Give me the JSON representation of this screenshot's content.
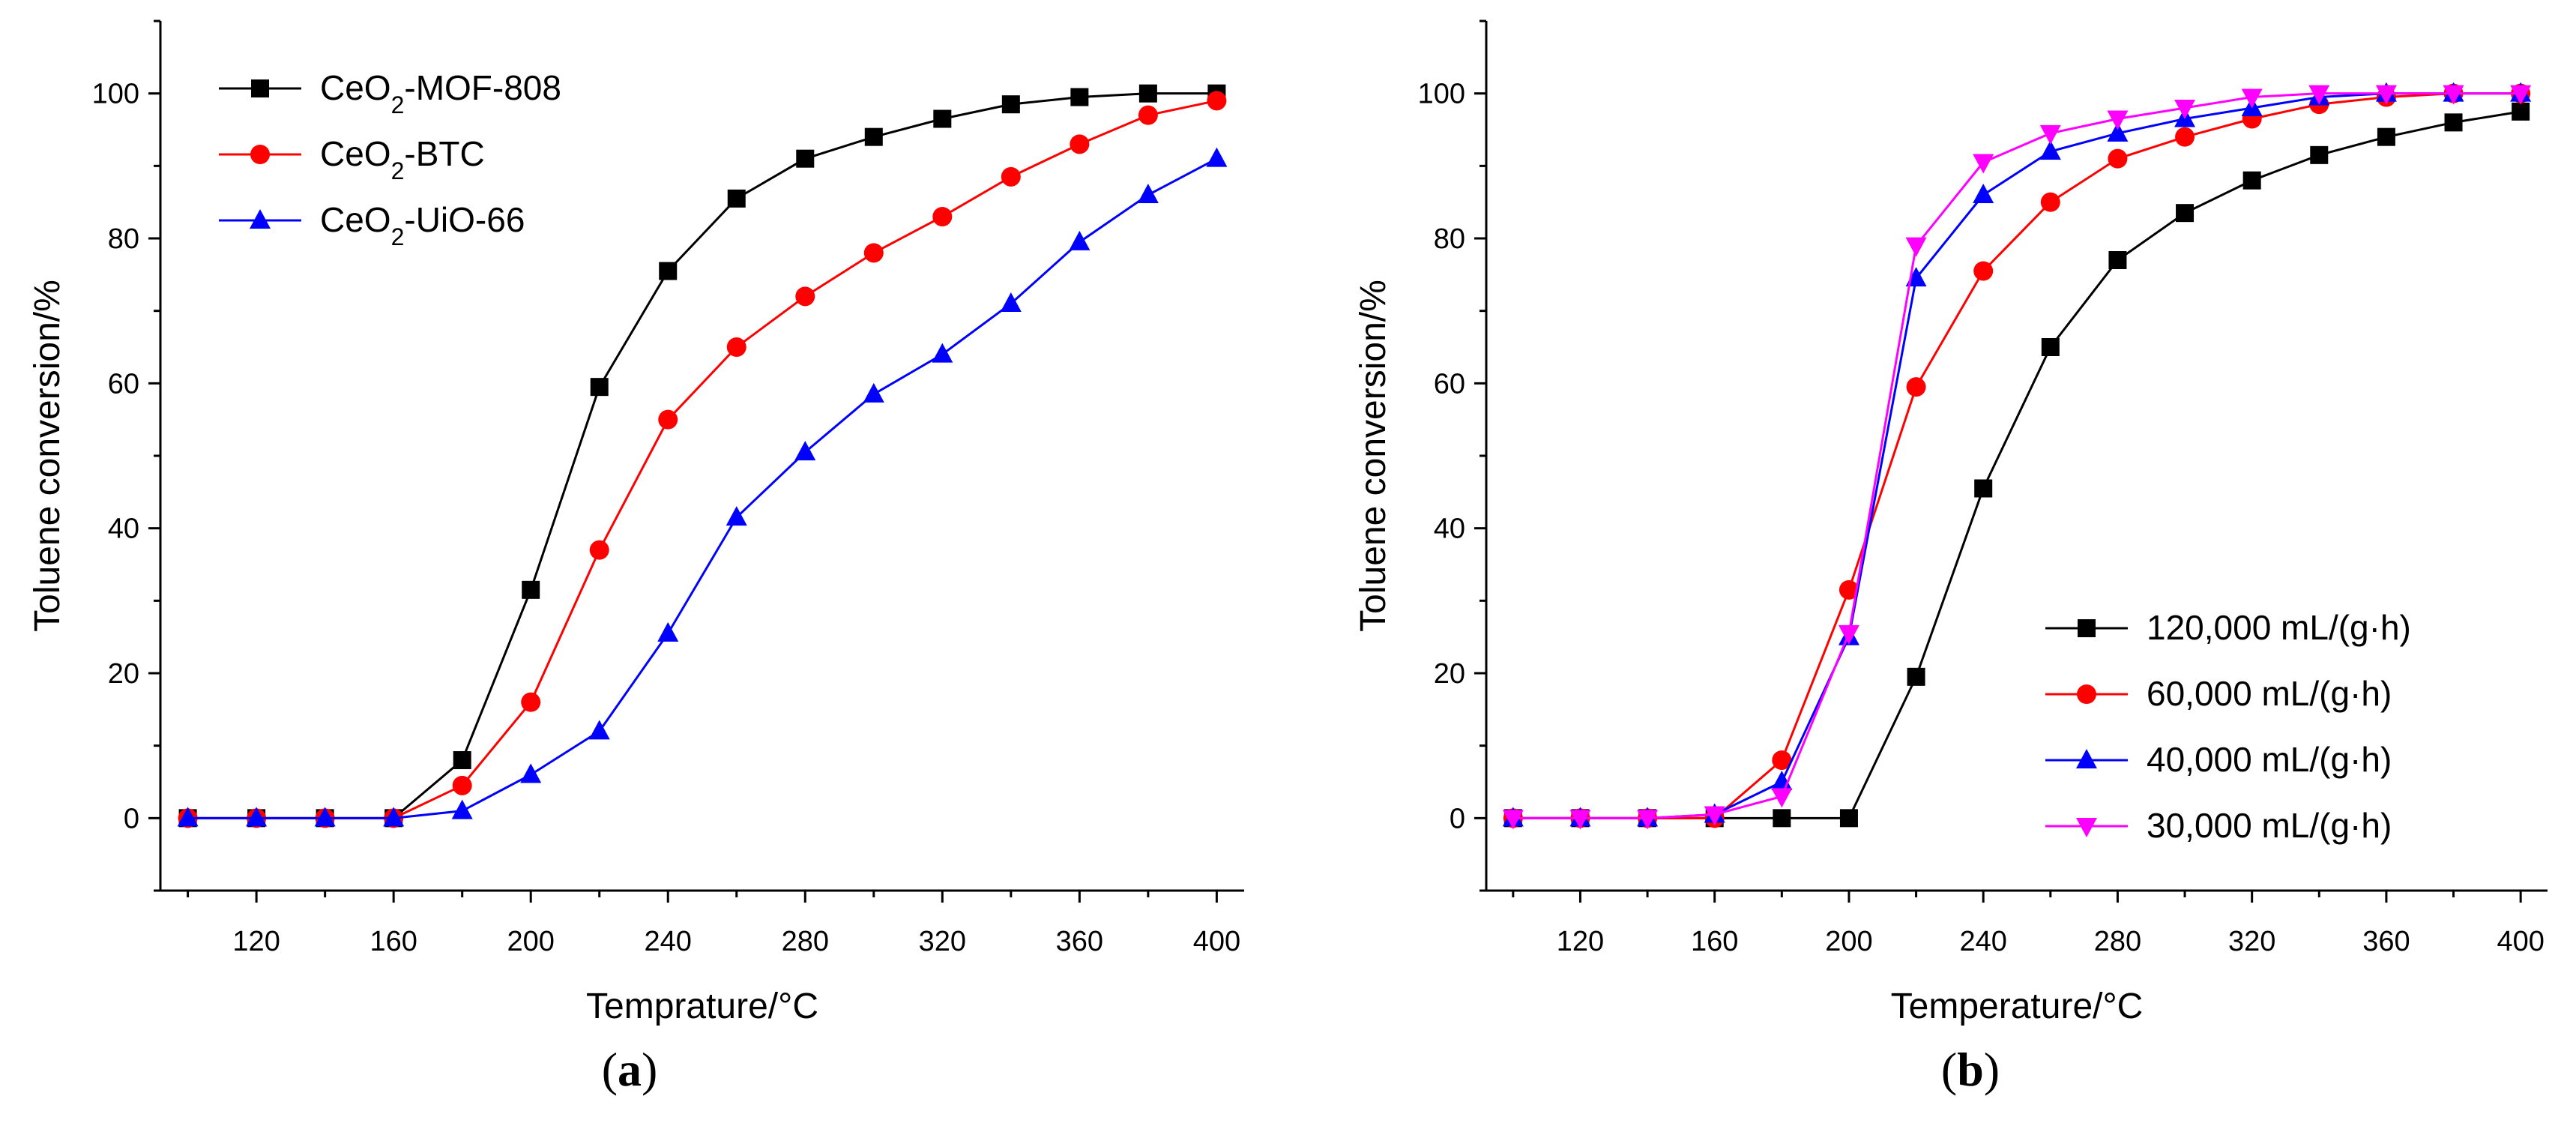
{
  "figure": {
    "labels": [
      "a",
      "b"
    ]
  },
  "chart_data": [
    {
      "type": "line",
      "title": "",
      "xlabel": "Temprature/°C",
      "ylabel": "Toluene conversion/%",
      "xlim": [
        92,
        408
      ],
      "ylim": [
        -10,
        110
      ],
      "xticks": [
        120,
        160,
        200,
        240,
        280,
        320,
        360,
        400
      ],
      "yticks": [
        0,
        20,
        40,
        60,
        80,
        100
      ],
      "legend_position": "top-left",
      "x": [
        100,
        120,
        140,
        160,
        180,
        200,
        220,
        240,
        260,
        280,
        300,
        320,
        340,
        360,
        380,
        400
      ],
      "series": [
        {
          "name": "CeO₂-MOF-808",
          "name_parts": [
            "CeO",
            "2",
            "-MOF-808"
          ],
          "color": "#000000",
          "marker": "square",
          "values": [
            0,
            0,
            0,
            0,
            8,
            31.5,
            59.5,
            75.5,
            85.5,
            91,
            94,
            96.5,
            98.5,
            99.5,
            100,
            100
          ]
        },
        {
          "name": "CeO₂-BTC",
          "name_parts": [
            "CeO",
            "2",
            "-BTC"
          ],
          "color": "#ff0000",
          "marker": "circle",
          "values": [
            0,
            0,
            0,
            0,
            4.5,
            16,
            37,
            55,
            65,
            72,
            78,
            83,
            88.5,
            93,
            97,
            99
          ]
        },
        {
          "name": "CeO₂-UiO-66",
          "name_parts": [
            "CeO",
            "2",
            "-UiO-66"
          ],
          "color": "#0000ff",
          "marker": "triangle-up",
          "values": [
            0,
            0,
            0,
            0,
            1,
            6,
            12,
            25.5,
            41.5,
            50.5,
            58.5,
            64,
            71,
            79.5,
            86,
            91
          ]
        }
      ]
    },
    {
      "type": "line",
      "title": "",
      "xlabel": "Temperature/°C",
      "ylabel": "Toluene conversion/%",
      "xlim": [
        92,
        408
      ],
      "ylim": [
        -10,
        110
      ],
      "xticks": [
        120,
        160,
        200,
        240,
        280,
        320,
        360,
        400
      ],
      "yticks": [
        0,
        20,
        40,
        60,
        80,
        100
      ],
      "legend_position": "bottom-right",
      "x": [
        100,
        120,
        140,
        160,
        180,
        200,
        220,
        240,
        260,
        280,
        300,
        320,
        340,
        360,
        380,
        400
      ],
      "series": [
        {
          "name": "120,000 mL/(g·h)",
          "name_parts": [
            "120,000 mL/(g·h)"
          ],
          "color": "#000000",
          "marker": "square",
          "values": [
            0,
            0,
            0,
            0,
            0,
            0,
            19.5,
            45.5,
            65,
            77,
            83.5,
            88,
            91.5,
            94,
            96,
            97.5
          ]
        },
        {
          "name": "60,000 mL/(g·h)",
          "name_parts": [
            "60,000 mL/(g·h)"
          ],
          "color": "#ff0000",
          "marker": "circle",
          "values": [
            0,
            0,
            0,
            0,
            8,
            31.5,
            59.5,
            75.5,
            85,
            91,
            94,
            96.5,
            98.5,
            99.5,
            100,
            100
          ]
        },
        {
          "name": "40,000 mL/(g·h)",
          "name_parts": [
            "40,000 mL/(g·h)"
          ],
          "color": "#0000ff",
          "marker": "triangle-up",
          "values": [
            0,
            0,
            0,
            0.5,
            5,
            25,
            74.5,
            86,
            92,
            94.5,
            96.5,
            98,
            99.5,
            100,
            100,
            100
          ]
        },
        {
          "name": "30,000 mL/(g·h)",
          "name_parts": [
            "30,000 mL/(g·h)"
          ],
          "color": "#ff00ff",
          "marker": "triangle-down",
          "values": [
            0,
            0,
            0,
            0.5,
            3,
            25.5,
            79,
            90.5,
            94.5,
            96.5,
            98,
            99.5,
            100,
            100,
            100,
            100
          ]
        }
      ]
    }
  ]
}
